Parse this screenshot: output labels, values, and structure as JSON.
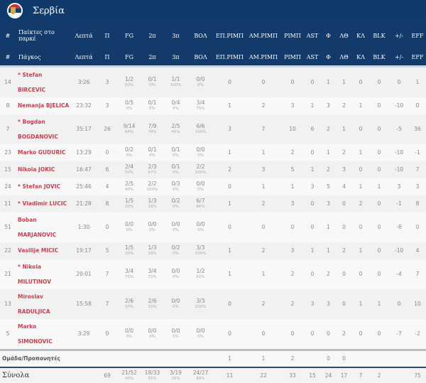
{
  "team": {
    "name": "Σερβία",
    "flag_colors": [
      "#c6363c",
      "#0c4076",
      "#ffffff"
    ]
  },
  "headers_court": [
    "#",
    "Παίκτες στο παρκέ",
    "Λεπτά",
    "Π",
    "FG",
    "2π",
    "3π",
    "ΒΟΛ",
    "ΕΠ.ΡΙΜΠ",
    "ΑΜ.ΡΙΜΠ",
    "ΡΙΜΠ",
    "AST",
    "Φ",
    "ΛΘ",
    "ΚΛ",
    "BLK",
    "+/-",
    "EFF"
  ],
  "headers_bench": [
    "#",
    "Πάγκος",
    "Λεπτά",
    "Π",
    "FG",
    "2π",
    "3π",
    "ΒΟΛ",
    "ΕΠ.ΡΙΜΠ",
    "ΑΜ.ΡΙΜΠ",
    "ΡΙΜΠ",
    "AST",
    "Φ",
    "ΛΘ",
    "ΚΛ",
    "BLK",
    "+/-",
    "EFF"
  ],
  "players": [
    {
      "no": "14",
      "name": "* Stefan BIRCEVIC",
      "min": "3:26",
      "pts": "3",
      "fg": [
        "1/2",
        "50%"
      ],
      "p2": [
        "0/1",
        "0%"
      ],
      "p3": [
        "1/1",
        "100%"
      ],
      "ft": [
        "0/0",
        "0%"
      ],
      "rest": [
        "0",
        "0",
        "0",
        "0",
        "1",
        "1",
        "0",
        "0",
        "0",
        "1"
      ]
    },
    {
      "no": "8",
      "name": "Nemanja BJELICA",
      "min": "23:32",
      "pts": "3",
      "fg": [
        "0/5",
        "0%"
      ],
      "p2": [
        "0/1",
        "0%"
      ],
      "p3": [
        "0/4",
        "0%"
      ],
      "ft": [
        "3/4",
        "75%"
      ],
      "rest": [
        "1",
        "2",
        "3",
        "1",
        "3",
        "2",
        "1",
        "0",
        "-10",
        "0"
      ]
    },
    {
      "no": "7",
      "name": "* Bogdan BOGDANOVIC",
      "min": "35:17",
      "pts": "26",
      "fg": [
        "9/14",
        "64%"
      ],
      "p2": [
        "7/9",
        "78%"
      ],
      "p3": [
        "2/5",
        "40%"
      ],
      "ft": [
        "6/6",
        "100%"
      ],
      "rest": [
        "3",
        "7",
        "10",
        "6",
        "2",
        "1",
        "0",
        "0",
        "-5",
        "36"
      ],
      "tall": true
    },
    {
      "no": "23",
      "name": "Marko GUDURIC",
      "min": "13:29",
      "pts": "0",
      "fg": [
        "0/2",
        "0%"
      ],
      "p2": [
        "0/1",
        "0%"
      ],
      "p3": [
        "0/1",
        "0%"
      ],
      "ft": [
        "0/0",
        "0%"
      ],
      "rest": [
        "1",
        "1",
        "2",
        "0",
        "1",
        "2",
        "1",
        "0",
        "-10",
        "-1"
      ]
    },
    {
      "no": "15",
      "name": "Nikola JOKIC",
      "min": "16:47",
      "pts": "6",
      "fg": [
        "2/4",
        "50%"
      ],
      "p2": [
        "2/3",
        "67%"
      ],
      "p3": [
        "0/1",
        "0%"
      ],
      "ft": [
        "2/2",
        "100%"
      ],
      "rest": [
        "2",
        "3",
        "5",
        "1",
        "2",
        "3",
        "0",
        "0",
        "-10",
        "7"
      ]
    },
    {
      "no": "24",
      "name": "* Stefan JOVIC",
      "min": "25:46",
      "pts": "4",
      "fg": [
        "2/5",
        "40%"
      ],
      "p2": [
        "2/2",
        "100%"
      ],
      "p3": [
        "0/3",
        "0%"
      ],
      "ft": [
        "0/0",
        "0%"
      ],
      "rest": [
        "0",
        "1",
        "1",
        "3",
        "5",
        "4",
        "1",
        "1",
        "3",
        "3"
      ]
    },
    {
      "no": "11",
      "name": "* Vladimir LUCIC",
      "min": "21:28",
      "pts": "8",
      "fg": [
        "1/5",
        "20%"
      ],
      "p2": [
        "1/3",
        "33%"
      ],
      "p3": [
        "0/2",
        "0%"
      ],
      "ft": [
        "6/7",
        "86%"
      ],
      "rest": [
        "1",
        "2",
        "3",
        "0",
        "3",
        "0",
        "2",
        "0",
        "-1",
        "8"
      ]
    },
    {
      "no": "51",
      "name": "Boban MARJANOVIC",
      "min": "1:30",
      "pts": "0",
      "fg": [
        "0/0",
        "0%"
      ],
      "p2": [
        "0/0",
        "0%"
      ],
      "p3": [
        "0/0",
        "0%"
      ],
      "ft": [
        "0/0",
        "0%"
      ],
      "rest": [
        "0",
        "0",
        "0",
        "0",
        "1",
        "0",
        "0",
        "0",
        "-6",
        "0"
      ],
      "tall": true
    },
    {
      "no": "22",
      "name": "Vasilije MICIC",
      "min": "19:17",
      "pts": "5",
      "fg": [
        "1/5",
        "20%"
      ],
      "p2": [
        "1/3",
        "33%"
      ],
      "p3": [
        "0/2",
        "0%"
      ],
      "ft": [
        "3/3",
        "100%"
      ],
      "rest": [
        "1",
        "2",
        "3",
        "1",
        "1",
        "2",
        "1",
        "0",
        "-10",
        "4"
      ]
    },
    {
      "no": "21",
      "name": "* Nikola MILUTINOV",
      "min": "20:01",
      "pts": "7",
      "fg": [
        "3/4",
        "75%"
      ],
      "p2": [
        "3/4",
        "75%"
      ],
      "p3": [
        "0/0",
        "0%"
      ],
      "ft": [
        "1/2",
        "50%"
      ],
      "rest": [
        "1",
        "1",
        "2",
        "0",
        "2",
        "0",
        "0",
        "0",
        "-4",
        "7"
      ],
      "tall": true
    },
    {
      "no": "13",
      "name": "Miroslav RADULJICA",
      "min": "15:58",
      "pts": "7",
      "fg": [
        "2/6",
        "33%"
      ],
      "p2": [
        "2/6",
        "33%"
      ],
      "p3": [
        "0/0",
        "0%"
      ],
      "ft": [
        "3/3",
        "100%"
      ],
      "rest": [
        "0",
        "2",
        "2",
        "3",
        "3",
        "0",
        "1",
        "1",
        "0",
        "10"
      ],
      "tall": true
    },
    {
      "no": "5",
      "name": "Marko SIMONOVIC",
      "min": "3:29",
      "pts": "0",
      "fg": [
        "0/0",
        "0%"
      ],
      "p2": [
        "0/0",
        "0%"
      ],
      "p3": [
        "0/0",
        "0%"
      ],
      "ft": [
        "0/0",
        "0%"
      ],
      "rest": [
        "0",
        "0",
        "0",
        "0",
        "0",
        "2",
        "0",
        "0",
        "-7",
        "-2"
      ]
    }
  ],
  "team_row": {
    "label": "Ομάδα/Προπονητές",
    "rest": [
      "1",
      "1",
      "2",
      "",
      "0",
      "0",
      "",
      "",
      "",
      ""
    ]
  },
  "totals": {
    "label": "Σύνολα",
    "pts": "69",
    "fg": [
      "21/52",
      "40%"
    ],
    "p2": [
      "18/33",
      "55%"
    ],
    "p3": [
      "3/19",
      "16%"
    ],
    "ft": [
      "24/27",
      "89%"
    ],
    "rest": [
      "11",
      "22",
      "33",
      "15",
      "24",
      "17",
      "7",
      "2",
      "",
      "75"
    ]
  }
}
